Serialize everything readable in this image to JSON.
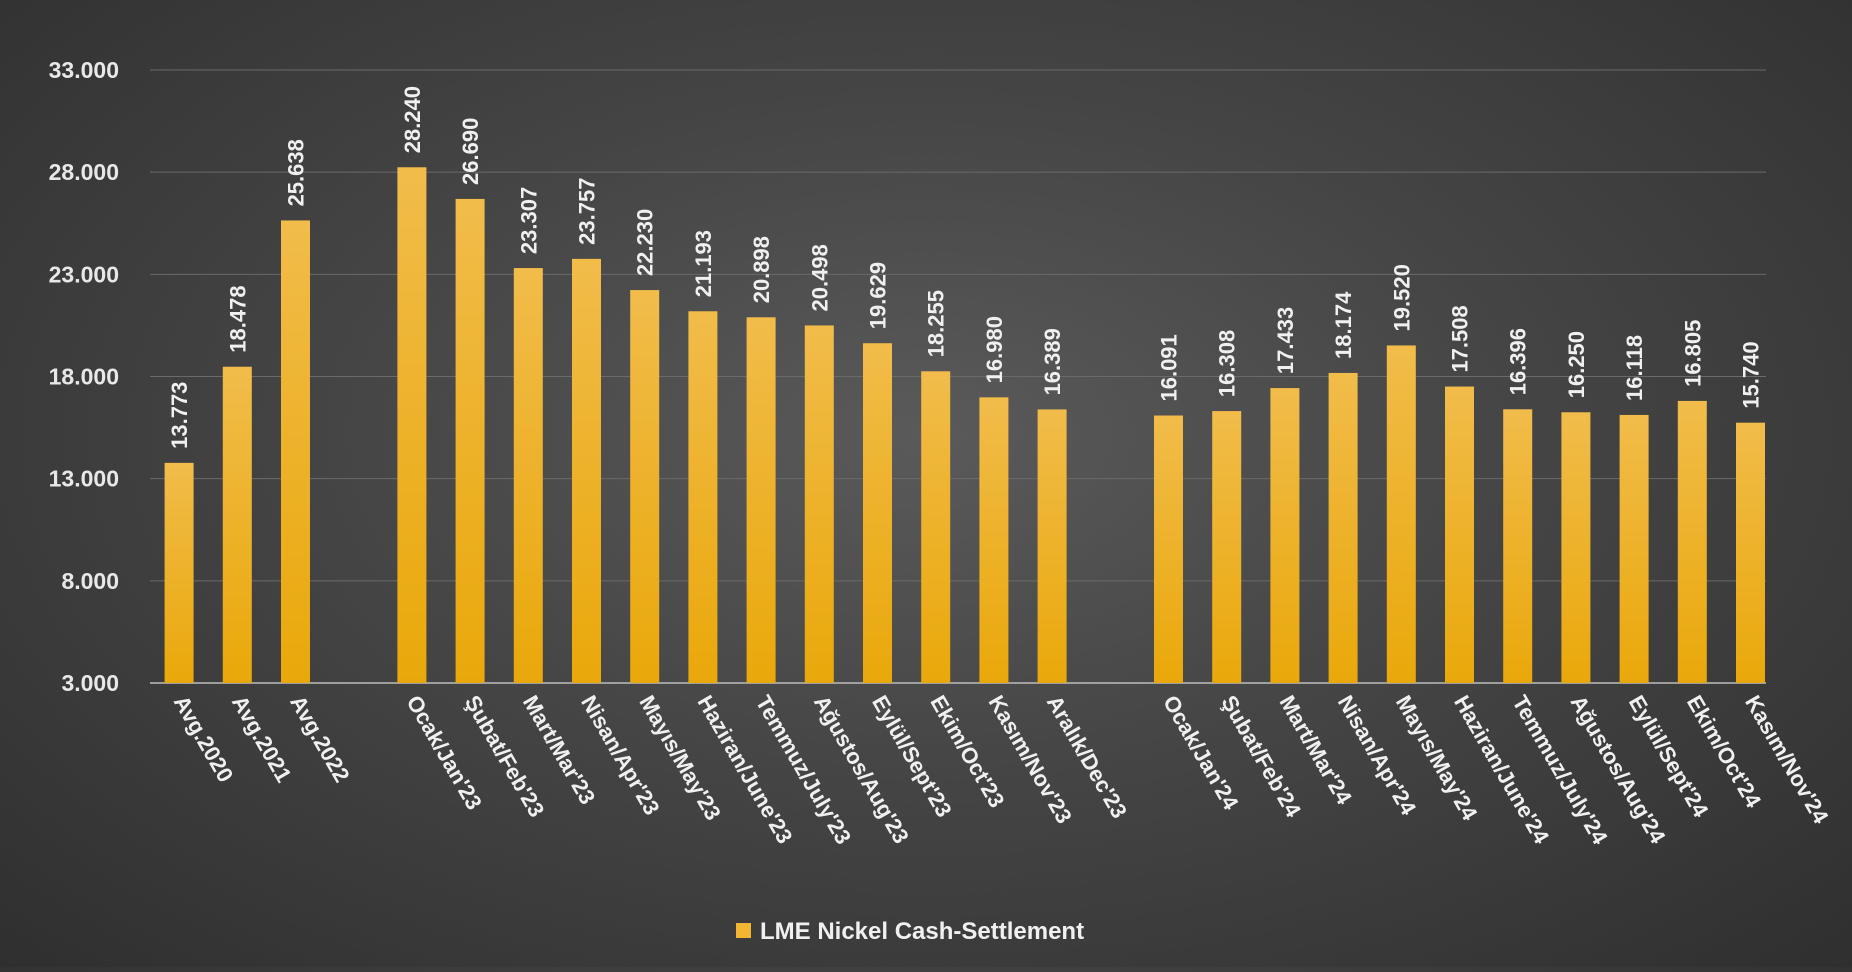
{
  "chart_data": {
    "type": "bar",
    "y_ticks": [
      "3.000",
      "8.000",
      "13.000",
      "18.000",
      "23.000",
      "28.000",
      "33.000"
    ],
    "ylim": [
      3000,
      33000
    ],
    "grid": true,
    "legend_position": "bottom-center",
    "bar_color": "#f2b632",
    "groups": [
      {
        "categories": [
          "Avg.2020",
          "Avg.2021",
          "Avg.2022"
        ],
        "values": [
          13773,
          18478,
          25638
        ],
        "labels": [
          "13.773",
          "18.478",
          "25.638"
        ]
      },
      {
        "categories": [
          "Ocak/Jan'23",
          "Şubat/Feb'23",
          "Mart/Mar'23",
          "Nisan/Apr'23",
          "Mayıs/May'23",
          "Haziran/June'23",
          "Temmuz/July'23",
          "Ağustos/Aug'23",
          "Eylül/Sept'23",
          "Ekim/Oct'23",
          "Kasım/Nov'23",
          "Aralık/Dec'23"
        ],
        "values": [
          28240,
          26690,
          23307,
          23757,
          22230,
          21193,
          20898,
          20498,
          19629,
          18255,
          16980,
          16389
        ],
        "labels": [
          "28.240",
          "26.690",
          "23.307",
          "23.757",
          "22.230",
          "21.193",
          "20.898",
          "20.498",
          "19.629",
          "18.255",
          "16.980",
          "16.389"
        ]
      },
      {
        "categories": [
          "Ocak/Jan'24",
          "Şubat/Feb'24",
          "Mart/Mar'24",
          "Nisan/Apr'24",
          "Mayıs/May'24",
          "Haziran/June'24",
          "Temmuz/July'24",
          "Ağustos/Aug'24",
          "Eylül/Sept'24",
          "Ekim/Oct'24",
          "Kasım/Nov'24"
        ],
        "values": [
          16091,
          16308,
          17433,
          18174,
          19520,
          17508,
          16396,
          16250,
          16118,
          16805,
          15740
        ],
        "labels": [
          "16.091",
          "16.308",
          "17.433",
          "18.174",
          "19.520",
          "17.508",
          "16.396",
          "16.250",
          "16.118",
          "16.805",
          "15.740"
        ]
      }
    ],
    "legend": [
      {
        "name": "LME Nickel Cash-Settlement",
        "color": "#f2b632"
      }
    ]
  }
}
